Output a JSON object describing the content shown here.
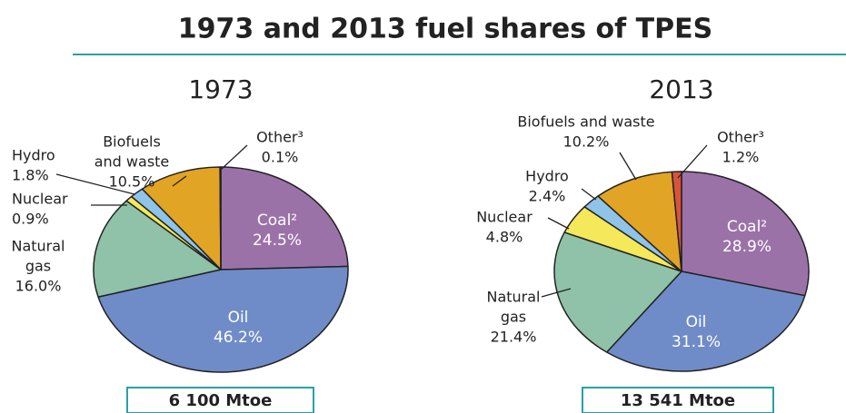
{
  "title": "1973 and 2013 fuel shares of TPES",
  "chart_data": [
    {
      "type": "pie",
      "title": "1973",
      "total": "6 100 Mtoe",
      "categories": [
        [
          "Coal²"
        ],
        [
          "Oil"
        ],
        [
          "Natural",
          "gas"
        ],
        [
          "Nuclear"
        ],
        [
          "Hydro"
        ],
        [
          "Biofuels",
          "and waste"
        ],
        [
          "Other³"
        ]
      ],
      "values": [
        24.5,
        46.2,
        16.0,
        0.9,
        1.8,
        10.5,
        0.1
      ],
      "value_labels": [
        "24.5%",
        "46.2%",
        "16.0%",
        "0.9%",
        "1.8%",
        "10.5%",
        "0.1%"
      ],
      "colors": [
        "#9b72a8",
        "#6f8cc8",
        "#8fc2a8",
        "#f5e85a",
        "#8fc4e8",
        "#e2a424",
        "#d9533a"
      ]
    },
    {
      "type": "pie",
      "title": "2013",
      "total": "13 541 Mtoe",
      "categories": [
        [
          "Coal²"
        ],
        [
          "Oil"
        ],
        [
          "Natural",
          "gas"
        ],
        [
          "Nuclear"
        ],
        [
          "Hydro"
        ],
        [
          "Biofuels and waste"
        ],
        [
          "Other³"
        ]
      ],
      "values": [
        28.9,
        31.1,
        21.4,
        4.8,
        2.4,
        10.2,
        1.2
      ],
      "value_labels": [
        "28.9%",
        "31.1%",
        "21.4%",
        "4.8%",
        "2.4%",
        "10.2%",
        "1.2%"
      ],
      "colors": [
        "#9b72a8",
        "#6f8cc8",
        "#8fc2a8",
        "#f5e85a",
        "#8fc4e8",
        "#e2a424",
        "#d9533a"
      ]
    }
  ]
}
